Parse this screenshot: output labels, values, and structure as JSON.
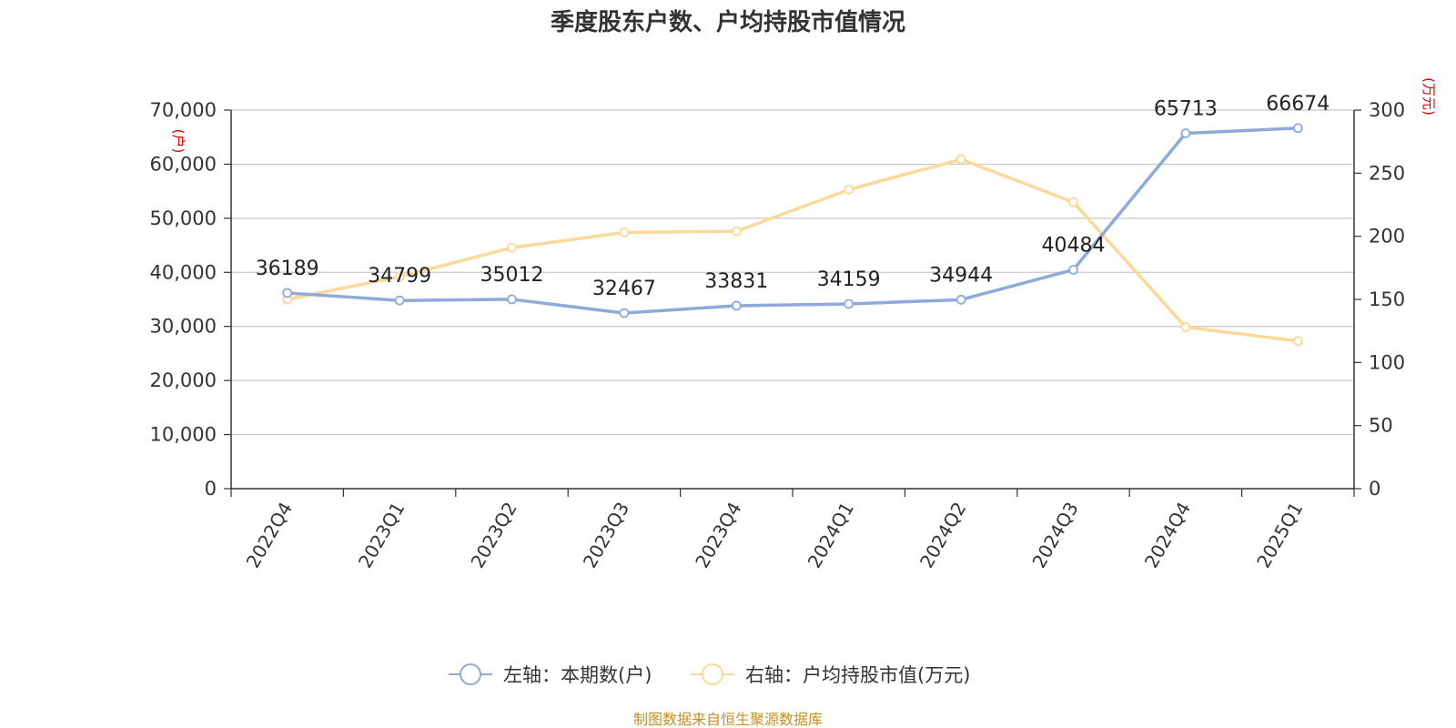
{
  "chart_data": {
    "type": "line",
    "title": "季度股东户数、户均持股市值情况",
    "categories": [
      "2022Q4",
      "2023Q1",
      "2023Q2",
      "2023Q3",
      "2023Q4",
      "2024Q1",
      "2024Q2",
      "2024Q3",
      "2024Q4",
      "2025Q1"
    ],
    "y_left": {
      "unit": "(户)",
      "ylim": [
        0,
        70000
      ],
      "ticks": [
        "0",
        "10,000",
        "20,000",
        "30,000",
        "40,000",
        "50,000",
        "60,000",
        "70,000"
      ],
      "tick_values": [
        0,
        10000,
        20000,
        30000,
        40000,
        50000,
        60000,
        70000
      ]
    },
    "y_right": {
      "unit": "(万元)",
      "ylim": [
        0,
        300
      ],
      "ticks": [
        "0",
        "50",
        "100",
        "150",
        "200",
        "250",
        "300"
      ],
      "tick_values": [
        0,
        50,
        100,
        150,
        200,
        250,
        300
      ]
    },
    "grid": true,
    "legend_position": "bottom-center",
    "series": [
      {
        "name": "左轴：本期数(户)",
        "axis": "left",
        "color": "#8eaadb",
        "values": [
          36189,
          34799,
          35012,
          32467,
          33831,
          34159,
          34944,
          40484,
          65713,
          66674
        ],
        "labels": [
          "36189",
          "34799",
          "35012",
          "32467",
          "33831",
          "34159",
          "34944",
          "40484",
          "65713",
          "66674"
        ]
      },
      {
        "name": "右轴：户均持股市值(万元)",
        "axis": "right",
        "color": "#fdd999",
        "values": [
          150,
          168,
          191,
          203,
          204,
          237,
          261,
          227,
          128,
          117
        ]
      }
    ]
  },
  "source": "制图数据来自恒生聚源数据库"
}
